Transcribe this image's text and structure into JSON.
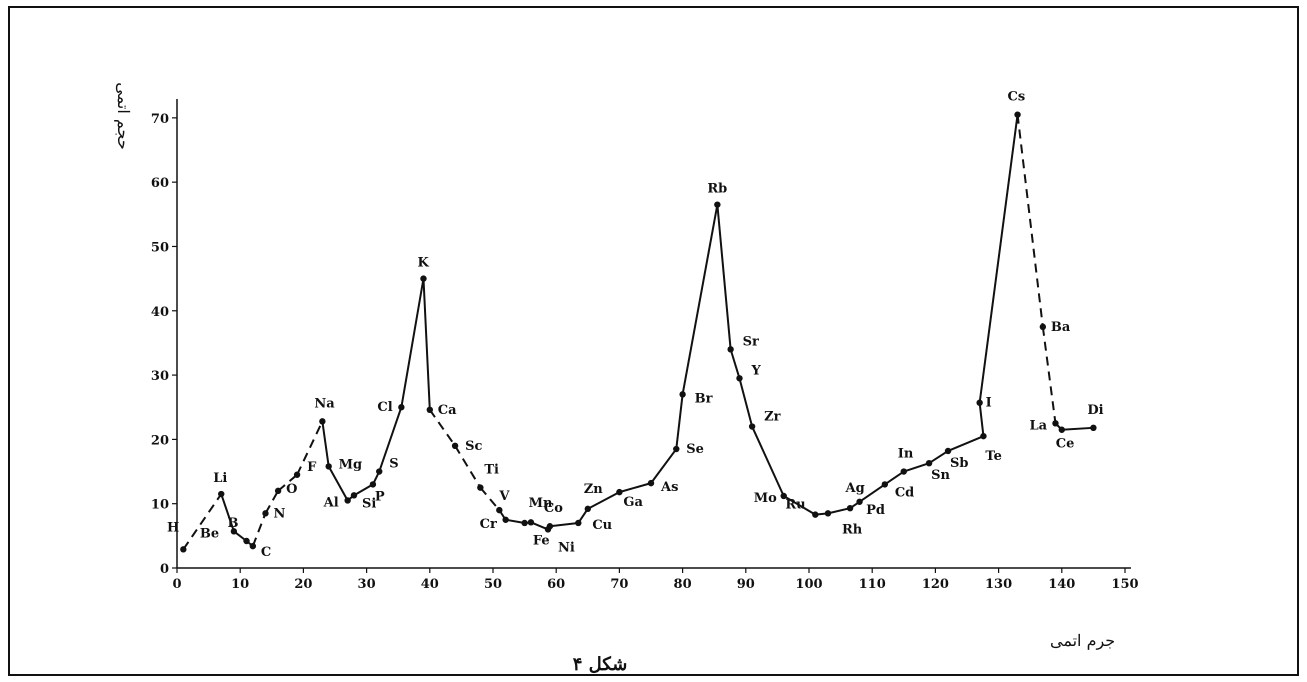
{
  "figure": {
    "caption": "شکل ۴"
  },
  "chart_data": {
    "type": "line",
    "title": "",
    "xlabel": "جرم اتمی",
    "ylabel": "حجم اتمی",
    "xlim": [
      0,
      150
    ],
    "ylim": [
      0,
      72
    ],
    "xticks": [
      0,
      10,
      20,
      30,
      40,
      50,
      60,
      70,
      80,
      90,
      100,
      110,
      120,
      130,
      140,
      150
    ],
    "yticks": [
      0,
      10,
      20,
      30,
      40,
      50,
      60,
      70
    ],
    "grid": false,
    "points": [
      {
        "label": "H",
        "x": 1,
        "y": 2.9
      },
      {
        "label": "Li",
        "x": 7,
        "y": 11.5
      },
      {
        "label": "Be",
        "x": 9,
        "y": 5.7
      },
      {
        "label": "B",
        "x": 11,
        "y": 4.2
      },
      {
        "label": "C",
        "x": 12,
        "y": 3.4
      },
      {
        "label": "N",
        "x": 14,
        "y": 8.5
      },
      {
        "label": "O",
        "x": 16,
        "y": 12.0
      },
      {
        "label": "F",
        "x": 19,
        "y": 14.5
      },
      {
        "label": "Na",
        "x": 23,
        "y": 22.8
      },
      {
        "label": "Mg",
        "x": 24,
        "y": 15.8
      },
      {
        "label": "Al",
        "x": 27,
        "y": 10.5
      },
      {
        "label": "Si",
        "x": 28,
        "y": 11.3
      },
      {
        "label": "P",
        "x": 31,
        "y": 13.0
      },
      {
        "label": "S",
        "x": 32,
        "y": 15.0
      },
      {
        "label": "Cl",
        "x": 35.5,
        "y": 25.0
      },
      {
        "label": "K",
        "x": 39,
        "y": 45.0
      },
      {
        "label": "Ca",
        "x": 40,
        "y": 24.6
      },
      {
        "label": "Sc",
        "x": 44,
        "y": 19.0
      },
      {
        "label": "Ti",
        "x": 48,
        "y": 12.5
      },
      {
        "label": "V",
        "x": 51,
        "y": 9.0
      },
      {
        "label": "Cr",
        "x": 52,
        "y": 7.5
      },
      {
        "label": "Mn",
        "x": 55,
        "y": 7.0
      },
      {
        "label": "Fe",
        "x": 56,
        "y": 7.1
      },
      {
        "label": "Co",
        "x": 59,
        "y": 6.5
      },
      {
        "label": "Ni",
        "x": 58.7,
        "y": 6.0
      },
      {
        "label": "Cu",
        "x": 63.5,
        "y": 7.0
      },
      {
        "label": "Zn",
        "x": 65,
        "y": 9.2
      },
      {
        "label": "Ga",
        "x": 70,
        "y": 11.8
      },
      {
        "label": "As",
        "x": 75,
        "y": 13.2
      },
      {
        "label": "Se",
        "x": 79,
        "y": 18.5
      },
      {
        "label": "Br",
        "x": 80,
        "y": 27.0
      },
      {
        "label": "Rb",
        "x": 85.5,
        "y": 56.5
      },
      {
        "label": "Sr",
        "x": 87.6,
        "y": 34.0
      },
      {
        "label": "Y",
        "x": 89,
        "y": 29.5
      },
      {
        "label": "Zr",
        "x": 91,
        "y": 22.0
      },
      {
        "label": "Mo",
        "x": 96,
        "y": 11.2
      },
      {
        "label": "Ru",
        "x": 101,
        "y": 8.3
      },
      {
        "label": "Rh",
        "x": 103,
        "y": 8.5
      },
      {
        "label": "Pd",
        "x": 106.5,
        "y": 9.3
      },
      {
        "label": "Ag",
        "x": 108,
        "y": 10.3
      },
      {
        "label": "Cd",
        "x": 112,
        "y": 13.0
      },
      {
        "label": "In",
        "x": 115,
        "y": 15.0
      },
      {
        "label": "Sn",
        "x": 119,
        "y": 16.3
      },
      {
        "label": "Sb",
        "x": 122,
        "y": 18.2
      },
      {
        "label": "Te",
        "x": 127.6,
        "y": 20.5
      },
      {
        "label": "I",
        "x": 127,
        "y": 25.7
      },
      {
        "label": "Cs",
        "x": 133,
        "y": 70.5
      },
      {
        "label": "Ba",
        "x": 137,
        "y": 37.5
      },
      {
        "label": "La",
        "x": 139,
        "y": 22.5
      },
      {
        "label": "Ce",
        "x": 140,
        "y": 21.5
      },
      {
        "label": "Di",
        "x": 145,
        "y": 21.8
      }
    ]
  }
}
